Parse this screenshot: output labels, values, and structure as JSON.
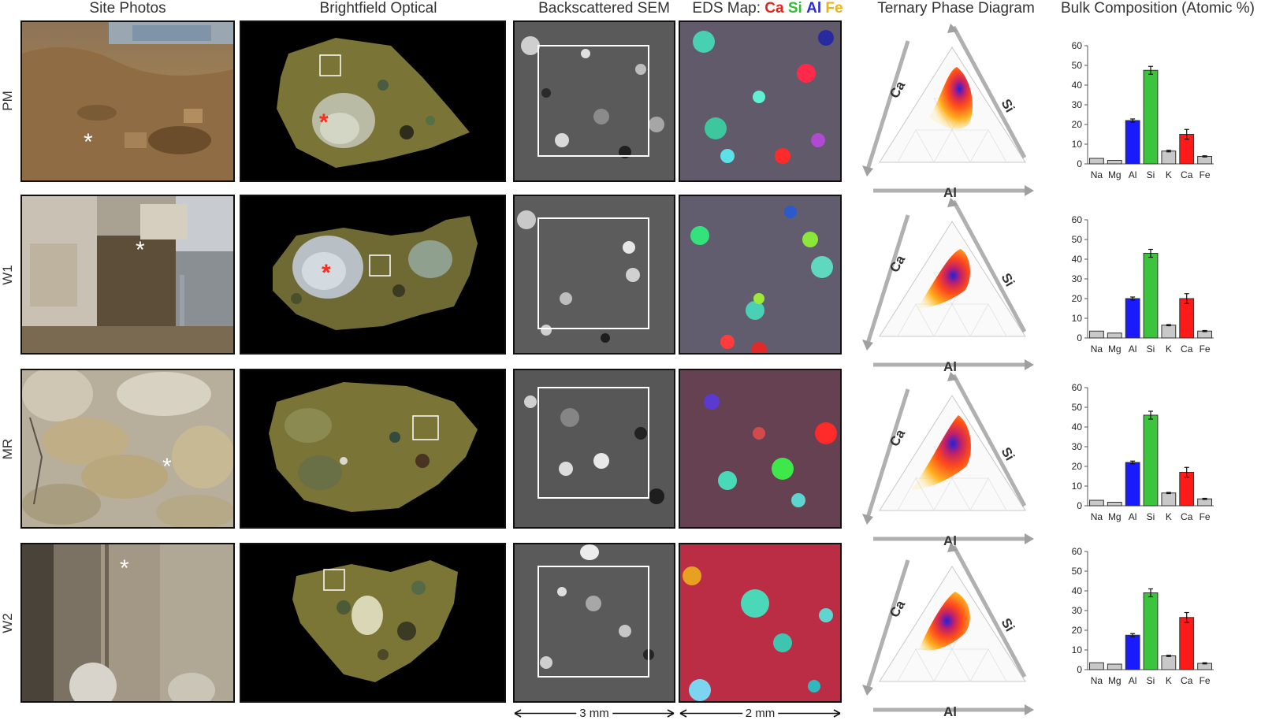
{
  "headers": {
    "site_photos": "Site Photos",
    "brightfield": "Brightfield Optical",
    "sem": "Backscattered SEM",
    "eds_prefix": "EDS Map: ",
    "eds_elements": [
      {
        "label": "Ca",
        "color": "#e8231b"
      },
      {
        "label": "Si",
        "color": "#2fbf2f"
      },
      {
        "label": "Al",
        "color": "#2a2ad8"
      },
      {
        "label": "Fe",
        "color": "#e8b21b"
      }
    ],
    "ternary": "Ternary Phase Diagram",
    "bulk": "Bulk Composition (Atomic %)"
  },
  "rows": [
    {
      "label": "PM"
    },
    {
      "label": "W1"
    },
    {
      "label": "MR"
    },
    {
      "label": "W2"
    }
  ],
  "scale_bars": {
    "sem": "3 mm",
    "eds": "2 mm"
  },
  "ternary_axes": {
    "left": "Ca",
    "right": "Si",
    "bottom": "Al"
  },
  "colors": {
    "Al": "#1a1aff",
    "Si": "#3cc43c",
    "Ca": "#ff1a1a",
    "other": "#c8c8c8",
    "photo_asterisk": "#ffffff",
    "bright_asterisk": "#ff2a1a"
  },
  "chart_data": [
    {
      "type": "bar",
      "row": "PM",
      "categories": [
        "Na",
        "Mg",
        "Al",
        "Si",
        "K",
        "Ca",
        "Fe"
      ],
      "values": [
        2.8,
        1.8,
        22,
        47.5,
        6.5,
        15,
        3.8
      ],
      "errors": [
        0,
        0,
        0.8,
        2,
        0.4,
        2.5,
        0.3
      ],
      "ylim": [
        0,
        60
      ],
      "yticks": [
        0,
        10,
        20,
        30,
        40,
        50,
        60
      ]
    },
    {
      "type": "bar",
      "row": "W1",
      "categories": [
        "Na",
        "Mg",
        "Al",
        "Si",
        "K",
        "Ca",
        "Fe"
      ],
      "values": [
        3.5,
        2.5,
        20,
        43,
        6.5,
        20,
        3.5
      ],
      "errors": [
        0,
        0,
        0.8,
        2,
        0.3,
        2.5,
        0.3
      ],
      "ylim": [
        0,
        60
      ],
      "yticks": [
        0,
        10,
        20,
        30,
        40,
        50,
        60
      ]
    },
    {
      "type": "bar",
      "row": "MR",
      "categories": [
        "Na",
        "Mg",
        "Al",
        "Si",
        "K",
        "Ca",
        "Fe"
      ],
      "values": [
        2.8,
        1.8,
        22,
        46,
        6.5,
        17,
        3.5
      ],
      "errors": [
        0,
        0,
        0.7,
        2,
        0.3,
        2.5,
        0.3
      ],
      "ylim": [
        0,
        60
      ],
      "yticks": [
        0,
        10,
        20,
        30,
        40,
        50,
        60
      ]
    },
    {
      "type": "bar",
      "row": "W2",
      "categories": [
        "Na",
        "Mg",
        "Al",
        "Si",
        "K",
        "Ca",
        "Fe"
      ],
      "values": [
        3.5,
        2.8,
        17.5,
        39,
        7,
        26.5,
        3.2
      ],
      "errors": [
        0,
        0,
        0.8,
        2,
        0.3,
        2.5,
        0.3
      ],
      "ylim": [
        0,
        60
      ],
      "yticks": [
        0,
        10,
        20,
        30,
        40,
        50,
        60
      ]
    }
  ]
}
